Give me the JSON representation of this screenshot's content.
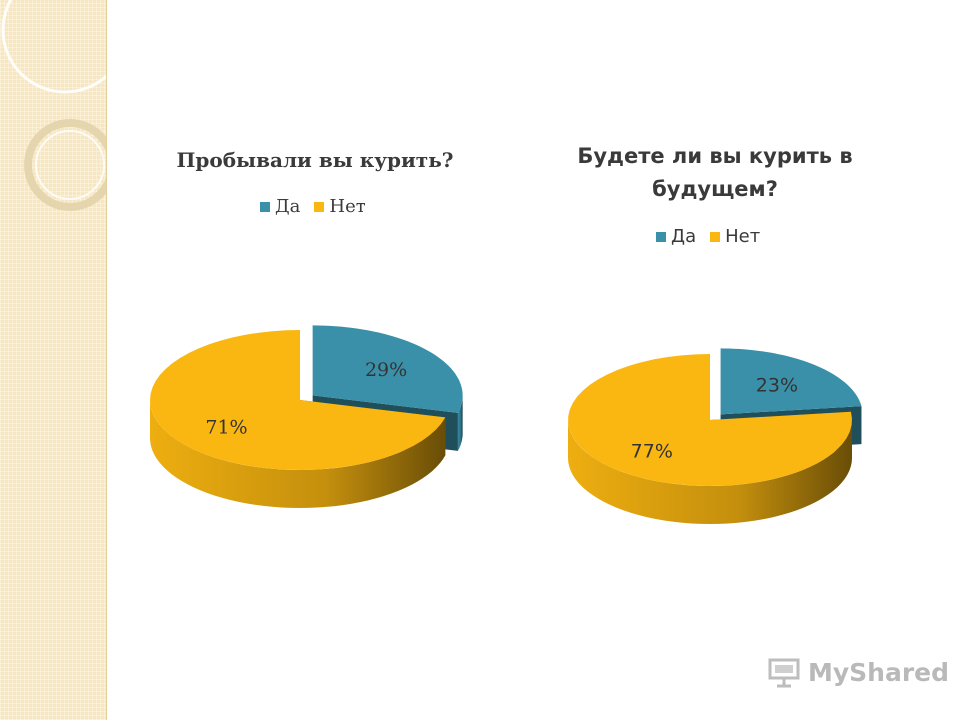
{
  "chart_data": [
    {
      "type": "pie",
      "title": "Пробывали вы курить?",
      "categories": [
        "Да",
        "Нет"
      ],
      "values": [
        29,
        71
      ],
      "value_labels": [
        "29%",
        "71%"
      ],
      "legend_placement": "top",
      "exploded": "Да",
      "style": "3d"
    },
    {
      "type": "pie",
      "title": "Будете ли вы курить в будущем?",
      "categories": [
        "Да",
        "Нет"
      ],
      "values": [
        23,
        77
      ],
      "value_labels": [
        "23%",
        "77%"
      ],
      "legend_placement": "top",
      "exploded": "Да",
      "style": "3d"
    }
  ],
  "colors": {
    "da": "#3a90a8",
    "net": "#fbb711"
  },
  "watermark": {
    "text": "MyShared"
  }
}
